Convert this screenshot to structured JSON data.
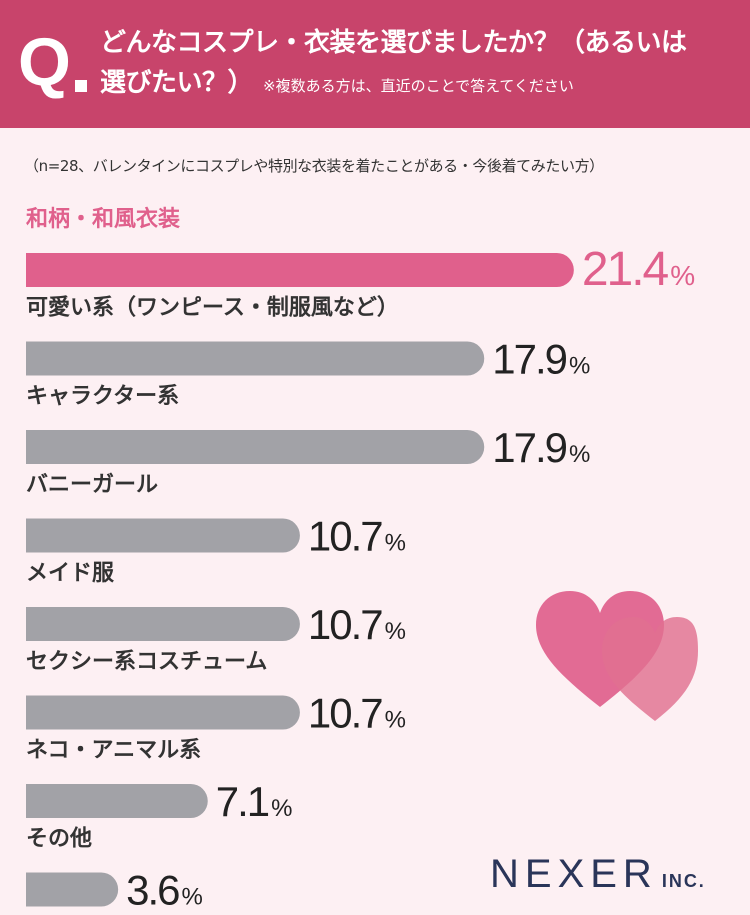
{
  "header": {
    "q_letter": "Q",
    "line1": "どんなコスプレ・衣装を選びましたか？（あるいは",
    "line2": "選びたい？）",
    "note": "※複数ある方は、直近のことで答えてください"
  },
  "sample_note": "（n=28、バレンタインにコスプレや特別な衣装を着たことがある・今後着てみたい方）",
  "logo": {
    "name": "NEXER",
    "suffix": "INC."
  },
  "colors": {
    "highlight": "#e0608c",
    "bar": "#a2a2a7",
    "header": "#c8446b",
    "background": "#fdf0f3"
  },
  "chart_data": {
    "type": "bar",
    "orientation": "horizontal",
    "unit": "%",
    "categories": [
      "和柄・和風衣装",
      "可愛い系（ワンピース・制服風など）",
      "キャラクター系",
      "バニーガール",
      "メイド服",
      "セクシー系コスチューム",
      "ネコ・アニマル系",
      "その他"
    ],
    "values": [
      21.4,
      17.9,
      17.9,
      10.7,
      10.7,
      10.7,
      7.1,
      3.6
    ],
    "highlight_index": 0
  }
}
